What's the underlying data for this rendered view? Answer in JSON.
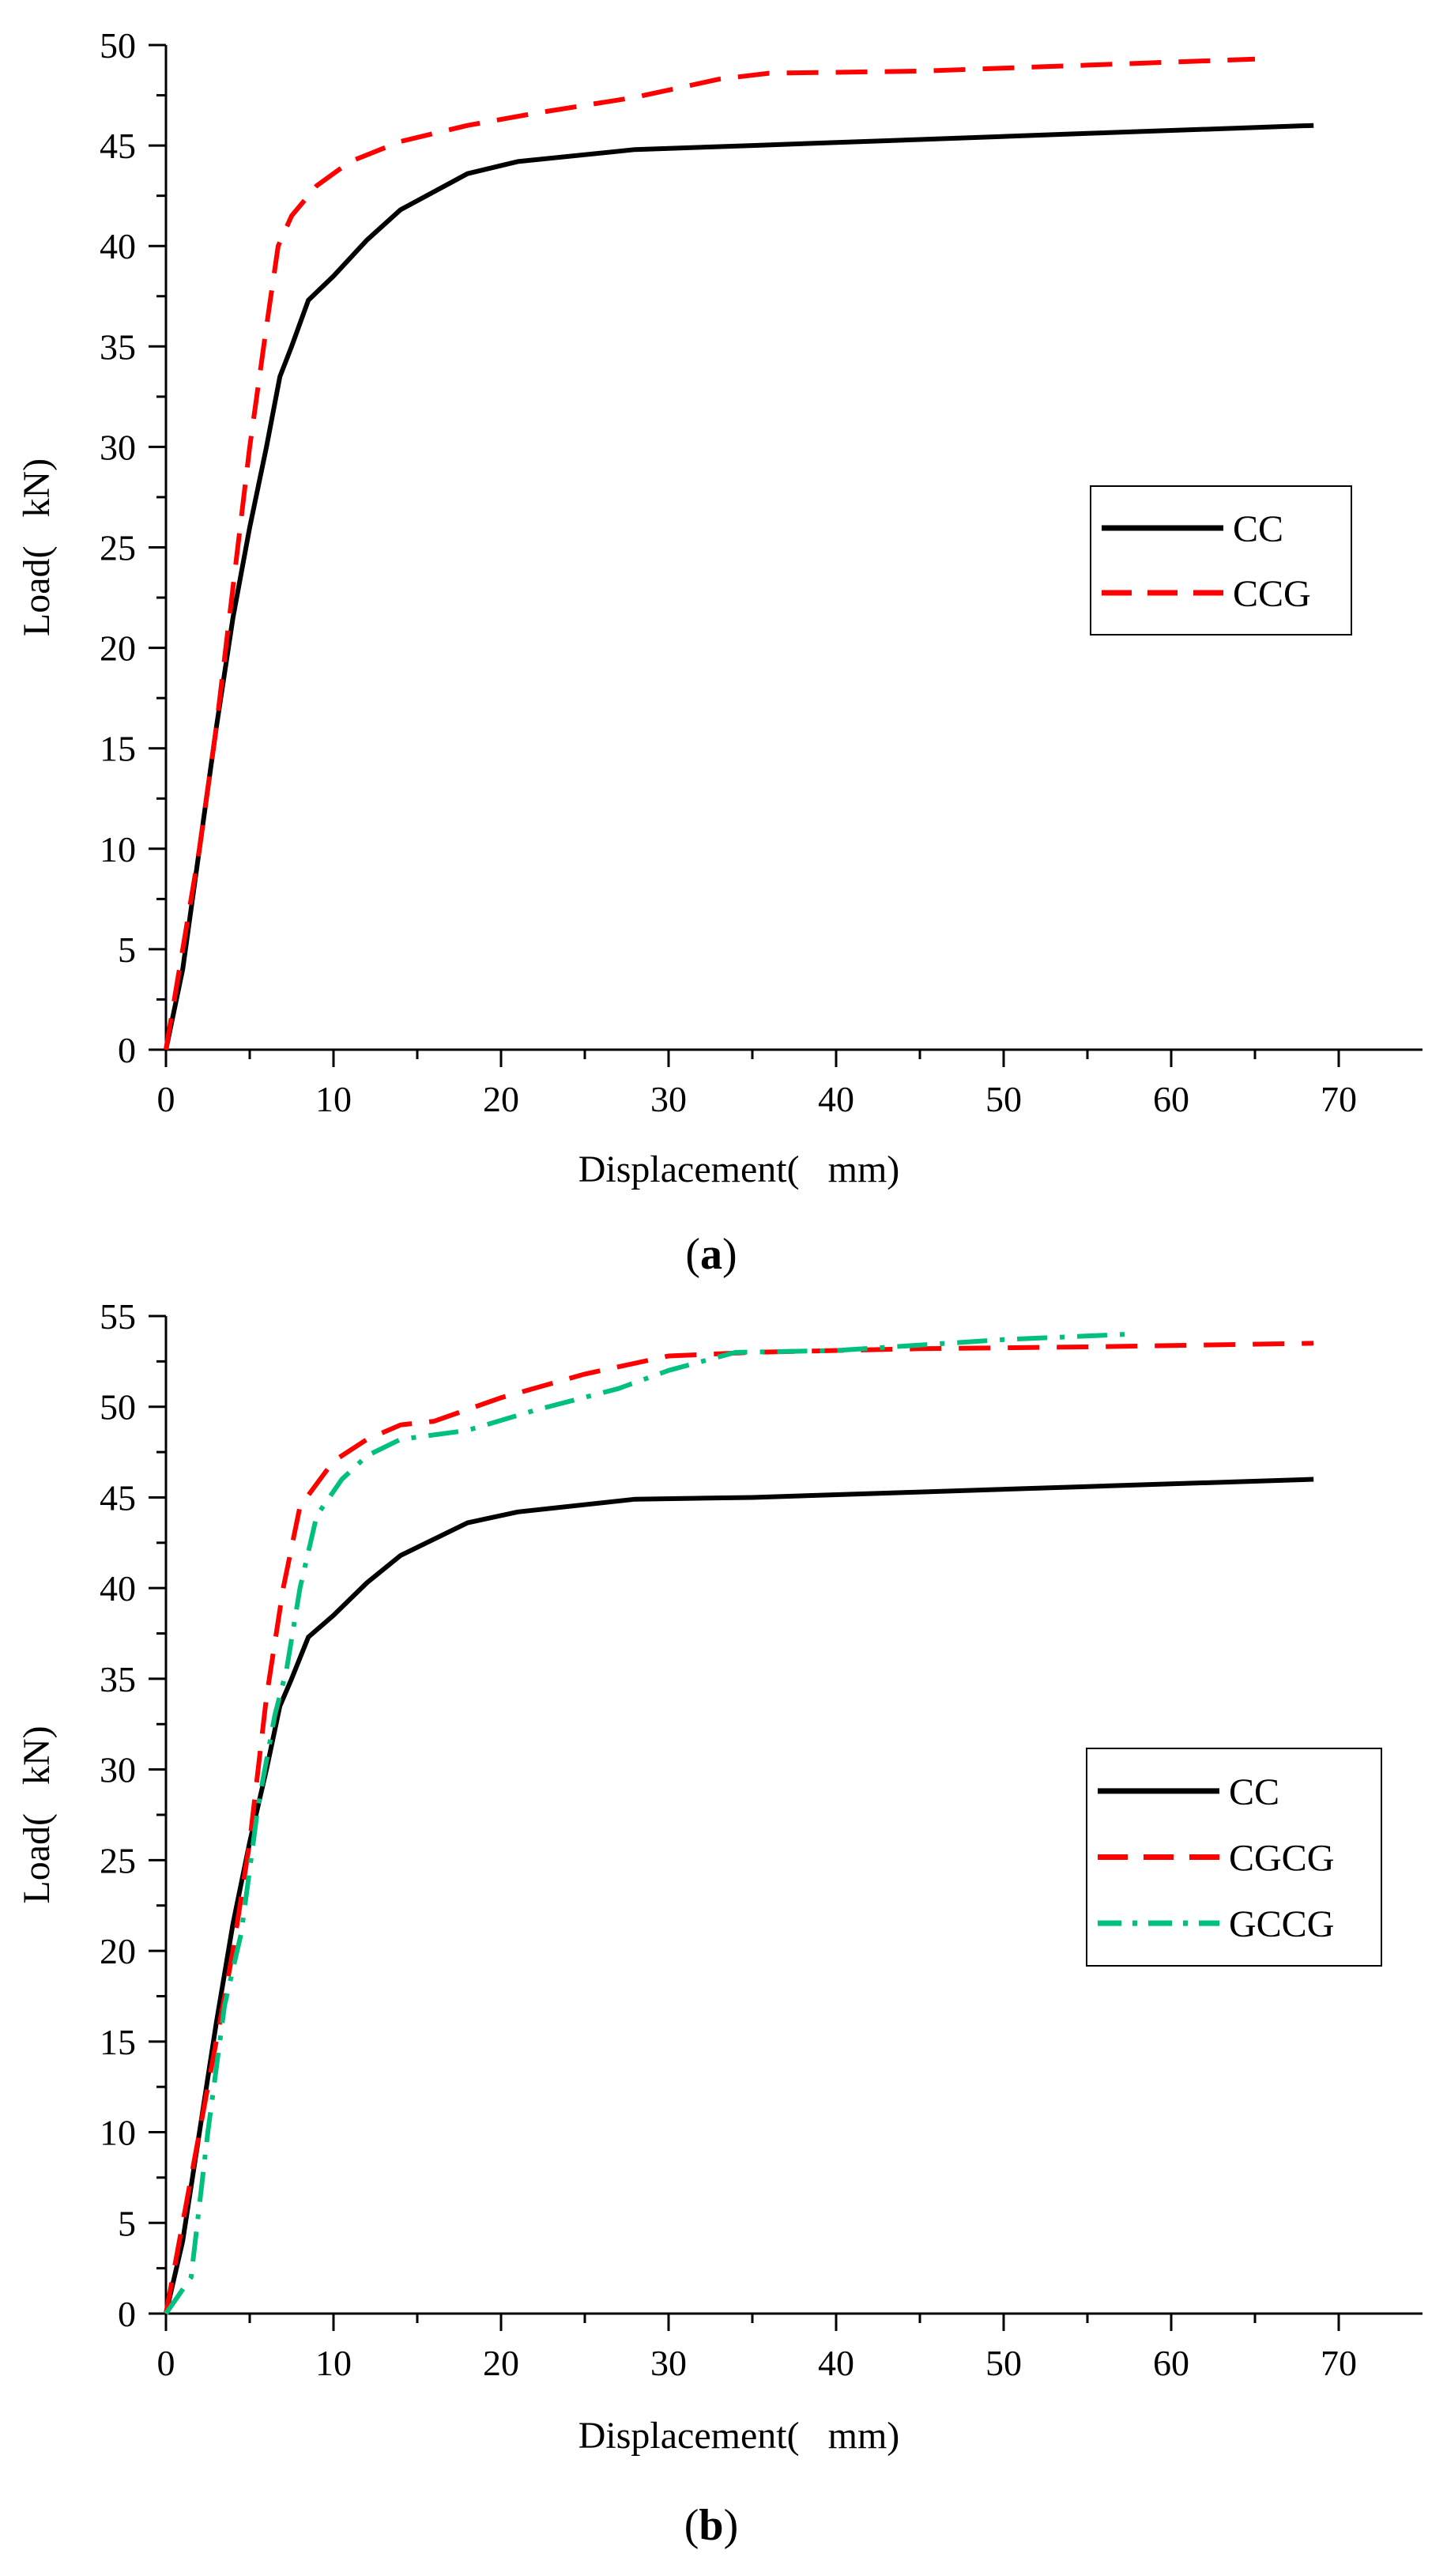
{
  "chart_data": [
    {
      "type": "line",
      "panel": "a",
      "panel_label_open": "(",
      "panel_label_letter": "a",
      "panel_label_close": ")",
      "xlabel": "Displacement(   mm)",
      "ylabel": "Load(   kN)",
      "xlim": [
        0,
        75
      ],
      "ylim": [
        0,
        50
      ],
      "xticks": [
        0,
        10,
        20,
        30,
        40,
        50,
        60,
        70
      ],
      "yticks": [
        0,
        5,
        10,
        15,
        20,
        25,
        30,
        35,
        40,
        45,
        50
      ],
      "legend_position": "center-right",
      "series": [
        {
          "name": "CC",
          "color": "#000000",
          "dash": "solid",
          "x": [
            0,
            1,
            2,
            3,
            4,
            5,
            6,
            6.8,
            7.5,
            8.5,
            10,
            12,
            14,
            18,
            21,
            28,
            35,
            45,
            55,
            68.5
          ],
          "y": [
            0,
            4,
            10,
            16,
            21.5,
            26,
            30,
            33.5,
            35,
            37.3,
            38.5,
            40.3,
            41.8,
            43.6,
            44.2,
            44.8,
            45,
            45.3,
            45.6,
            46
          ]
        },
        {
          "name": "CCG",
          "color": "#ff0000",
          "dash": "dashed",
          "x": [
            0,
            1,
            2,
            3,
            4,
            5,
            6,
            6.7,
            7.5,
            9,
            11,
            14,
            18,
            22,
            28,
            33,
            36,
            45,
            55,
            65
          ],
          "y": [
            0,
            5,
            10,
            16,
            23,
            30,
            36,
            40,
            41.5,
            43,
            44.2,
            45.2,
            46,
            46.6,
            47.4,
            48.3,
            48.6,
            48.7,
            49,
            49.3
          ]
        }
      ]
    },
    {
      "type": "line",
      "panel": "b",
      "panel_label_open": "(",
      "panel_label_letter": "b",
      "panel_label_close": ")",
      "xlabel": "Displacement(   mm)",
      "ylabel": "Load(   kN)",
      "xlim": [
        0,
        75
      ],
      "ylim": [
        0,
        55
      ],
      "xticks": [
        0,
        10,
        20,
        30,
        40,
        50,
        60,
        70
      ],
      "yticks": [
        0,
        5,
        10,
        15,
        20,
        25,
        30,
        35,
        40,
        45,
        50,
        55
      ],
      "legend_position": "center-right",
      "series": [
        {
          "name": "CC",
          "color": "#000000",
          "dash": "solid",
          "x": [
            0,
            1,
            2,
            3,
            4,
            5,
            6,
            6.8,
            7.5,
            8.5,
            10,
            12,
            14,
            18,
            21,
            28,
            35,
            45,
            55,
            68.5
          ],
          "y": [
            0,
            4,
            10,
            16,
            21.5,
            26,
            30,
            33.5,
            35,
            37.3,
            38.5,
            40.3,
            41.8,
            43.6,
            44.2,
            44.9,
            45,
            45.3,
            45.6,
            46
          ]
        },
        {
          "name": "CGCG",
          "color": "#ff0000",
          "dash": "dashed",
          "x": [
            0,
            1,
            2,
            3,
            4,
            5,
            6,
            7,
            8,
            10,
            12,
            14,
            16,
            20,
            25,
            30,
            35,
            45,
            55,
            68.5
          ],
          "y": [
            0,
            5,
            10,
            15,
            20,
            26,
            34,
            40,
            44.5,
            47,
            48.2,
            49,
            49.2,
            50.5,
            51.8,
            52.8,
            53,
            53.2,
            53.3,
            53.5
          ]
        },
        {
          "name": "GCCG",
          "color": "#00c080",
          "dash": "dashdot",
          "x": [
            0,
            1.5,
            2.5,
            3.5,
            4.5,
            5.5,
            6.5,
            7.2,
            8,
            9,
            10.5,
            12,
            14,
            18,
            22,
            27,
            30,
            34,
            40,
            50,
            57.5
          ],
          "y": [
            0,
            2,
            10,
            17,
            21,
            28,
            33,
            35.5,
            40,
            44,
            46,
            47.3,
            48.2,
            48.7,
            49.8,
            51,
            52,
            53,
            53.1,
            53.7,
            54
          ]
        }
      ]
    }
  ]
}
